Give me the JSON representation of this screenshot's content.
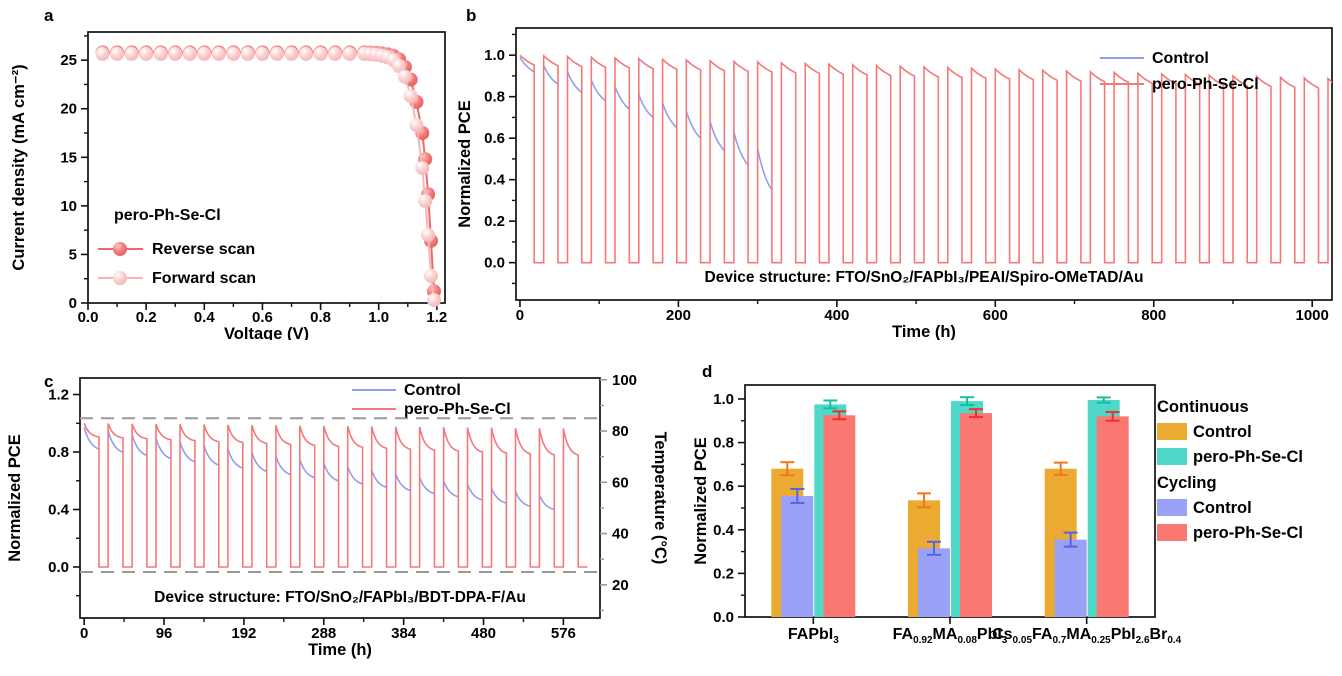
{
  "figure": {
    "panels": [
      {
        "letter": "a"
      },
      {
        "letter": "b"
      },
      {
        "letter": "c"
      },
      {
        "letter": "d"
      }
    ]
  },
  "colors": {
    "reverse_scan": "#ee6565",
    "forward_scan": "#f7b6b6",
    "control_line": "#8fa0ea",
    "pero_line": "#f57878",
    "continuous_control_bar": "#ebab33",
    "continuous_pero_bar": "#4fd8c8",
    "cycling_control_bar": "#99a2f6",
    "cycling_pero_bar": "#fa7772",
    "temp_axis_gray": "#9a9a9a"
  },
  "chart_data": [
    {
      "panel": "a",
      "type": "line",
      "xlabel": "Voltage (V)",
      "ylabel": "Current density (mA cm⁻²)",
      "xlim": [
        0,
        1.228
      ],
      "ylim": [
        0,
        27.9
      ],
      "xticks": [
        {
          "v": 0,
          "l": "0.0"
        },
        {
          "v": 0.2,
          "l": "0.2"
        },
        {
          "v": 0.4,
          "l": "0.4"
        },
        {
          "v": 0.6,
          "l": "0.6"
        },
        {
          "v": 0.8,
          "l": "0.8"
        },
        {
          "v": 1.0,
          "l": "1.0"
        },
        {
          "v": 1.2,
          "l": "1.2"
        }
      ],
      "xminor": [
        0.1,
        0.3,
        0.5,
        0.7,
        0.9,
        1.1
      ],
      "yticks": [
        {
          "v": 0,
          "l": "0"
        },
        {
          "v": 5,
          "l": "5"
        },
        {
          "v": 10,
          "l": "10"
        },
        {
          "v": 15,
          "l": "15"
        },
        {
          "v": 20,
          "l": "20"
        },
        {
          "v": 25,
          "l": "25"
        }
      ],
      "yminor": [
        2.5,
        7.5,
        12.5,
        17.5,
        22.5,
        27.5
      ],
      "legend_title": "pero-Ph-Se-Cl",
      "series": [
        {
          "name": "Reverse scan",
          "line_color": "#f06868",
          "marker": "sphere-dark",
          "x": [
            0.05,
            0.1,
            0.15,
            0.2,
            0.25,
            0.3,
            0.35,
            0.4,
            0.45,
            0.5,
            0.55,
            0.6,
            0.65,
            0.7,
            0.75,
            0.8,
            0.85,
            0.9,
            0.95,
            0.97,
            0.99,
            1.01,
            1.03,
            1.05,
            1.07,
            1.09,
            1.11,
            1.13,
            1.15,
            1.16,
            1.17,
            1.18,
            1.19
          ],
          "y": [
            25.8,
            25.8,
            25.8,
            25.8,
            25.8,
            25.8,
            25.8,
            25.8,
            25.8,
            25.8,
            25.8,
            25.8,
            25.8,
            25.8,
            25.8,
            25.8,
            25.8,
            25.8,
            25.8,
            25.78,
            25.75,
            25.7,
            25.6,
            25.45,
            25.1,
            24.3,
            23.0,
            20.7,
            17.5,
            14.8,
            11.2,
            6.4,
            1.2
          ]
        },
        {
          "name": "Forward scan",
          "line_color": "#f7b6b6",
          "marker": "sphere-light",
          "x": [
            0.05,
            0.1,
            0.15,
            0.2,
            0.25,
            0.3,
            0.35,
            0.4,
            0.45,
            0.5,
            0.55,
            0.6,
            0.65,
            0.7,
            0.75,
            0.8,
            0.85,
            0.9,
            0.95,
            0.97,
            0.99,
            1.01,
            1.03,
            1.05,
            1.07,
            1.09,
            1.11,
            1.13,
            1.15,
            1.16,
            1.17,
            1.18,
            1.19
          ],
          "y": [
            25.65,
            25.65,
            25.65,
            25.65,
            25.65,
            25.65,
            25.65,
            25.65,
            25.65,
            25.65,
            25.65,
            25.65,
            25.65,
            25.65,
            25.65,
            25.65,
            25.65,
            25.65,
            25.65,
            25.6,
            25.55,
            25.45,
            25.3,
            25.0,
            24.4,
            23.3,
            21.3,
            18.3,
            13.9,
            10.5,
            7.0,
            2.8,
            0.3
          ]
        }
      ]
    },
    {
      "panel": "b",
      "type": "line",
      "xlabel": "Time (h)",
      "ylabel": "Normalized PCE",
      "xlim": [
        -5,
        1025
      ],
      "ylim": [
        -0.18,
        1.131
      ],
      "xticks": [
        {
          "v": 0,
          "l": "0"
        },
        {
          "v": 200,
          "l": "200"
        },
        {
          "v": 400,
          "l": "400"
        },
        {
          "v": 600,
          "l": "600"
        },
        {
          "v": 800,
          "l": "800"
        },
        {
          "v": 1000,
          "l": "1000"
        }
      ],
      "xminor": [
        100,
        300,
        500,
        700,
        900
      ],
      "yticks": [
        {
          "v": 0,
          "l": "0.0"
        },
        {
          "v": 0.2,
          "l": "0.2"
        },
        {
          "v": 0.4,
          "l": "0.4"
        },
        {
          "v": 0.6,
          "l": "0.6"
        },
        {
          "v": 0.8,
          "l": "0.8"
        },
        {
          "v": 1.0,
          "l": "1.0"
        }
      ],
      "yminor": [
        -0.1,
        0.1,
        0.3,
        0.5,
        0.7,
        0.9,
        1.1
      ],
      "annotation": "Device structure: FTO/SnO₂/FAPbI₃/PEAI/Spiro-OMeTAD/Au",
      "cycle_hours": 30,
      "light_fraction": 0.6,
      "legend": [
        {
          "label": "Control",
          "color": "#8fa0ea"
        },
        {
          "label": "pero-Ph-Se-Cl",
          "color": "#f57878"
        }
      ],
      "series": [
        {
          "name": "pero-Ph-Se-Cl",
          "color": "#f57878",
          "style": "square-wave",
          "decay_k": 0.7,
          "cycles": [
            [
              1.0,
              0.952
            ],
            [
              0.997,
              0.949
            ],
            [
              0.993,
              0.945
            ],
            [
              0.99,
              0.942
            ],
            [
              0.987,
              0.939
            ],
            [
              0.983,
              0.935
            ],
            [
              0.98,
              0.932
            ],
            [
              0.977,
              0.929
            ],
            [
              0.973,
              0.925
            ],
            [
              0.97,
              0.922
            ],
            [
              0.967,
              0.919
            ],
            [
              0.963,
              0.915
            ],
            [
              0.96,
              0.912
            ],
            [
              0.957,
              0.909
            ],
            [
              0.953,
              0.905
            ],
            [
              0.95,
              0.902
            ],
            [
              0.947,
              0.899
            ],
            [
              0.943,
              0.895
            ],
            [
              0.94,
              0.892
            ],
            [
              0.937,
              0.889
            ],
            [
              0.933,
              0.885
            ],
            [
              0.93,
              0.882
            ],
            [
              0.927,
              0.879
            ],
            [
              0.923,
              0.875
            ],
            [
              0.92,
              0.872
            ],
            [
              0.917,
              0.869
            ],
            [
              0.913,
              0.865
            ],
            [
              0.91,
              0.862
            ],
            [
              0.907,
              0.859
            ],
            [
              0.903,
              0.855
            ],
            [
              0.9,
              0.852
            ],
            [
              0.897,
              0.849
            ],
            [
              0.893,
              0.845
            ],
            [
              0.89,
              0.842
            ],
            [
              0.887,
              0.839
            ]
          ]
        },
        {
          "name": "Control",
          "color": "#8fa0ea",
          "style": "decay-only",
          "decay_k": 1.2,
          "cycles": [
            [
              0.99,
              0.92
            ],
            [
              0.95,
              0.86
            ],
            [
              0.92,
              0.82
            ],
            [
              0.88,
              0.78
            ],
            [
              0.85,
              0.74
            ],
            [
              0.81,
              0.7
            ],
            [
              0.77,
              0.65
            ],
            [
              0.73,
              0.6
            ],
            [
              0.68,
              0.54
            ],
            [
              0.63,
              0.47
            ],
            [
              0.55,
              0.35
            ]
          ]
        }
      ]
    },
    {
      "panel": "c",
      "type": "line",
      "xlabel": "Time (h)",
      "ylabel": "Normalized PCE",
      "y2label": "Temperature (°C)",
      "xlim": [
        -5,
        620
      ],
      "ylim": [
        -0.355,
        1.315
      ],
      "xticks": [
        {
          "v": 0,
          "l": "0"
        },
        {
          "v": 96,
          "l": "96"
        },
        {
          "v": 192,
          "l": "192"
        },
        {
          "v": 288,
          "l": "288"
        },
        {
          "v": 384,
          "l": "384"
        },
        {
          "v": 480,
          "l": "480"
        },
        {
          "v": 576,
          "l": "576"
        }
      ],
      "xminor": [
        48,
        144,
        240,
        336,
        432,
        528
      ],
      "yticks": [
        {
          "v": 0,
          "l": "0.0"
        },
        {
          "v": 0.4,
          "l": "0.4"
        },
        {
          "v": 0.8,
          "l": "0.8"
        },
        {
          "v": 1.2,
          "l": "1.2"
        }
      ],
      "yminor": [
        -0.2,
        0.2,
        0.6,
        1.0
      ],
      "y2ticks": [
        {
          "v": 20,
          "l": "20"
        },
        {
          "v": 40,
          "l": "40"
        },
        {
          "v": 60,
          "l": "60"
        },
        {
          "v": 80,
          "l": "80"
        },
        {
          "v": 100,
          "l": "100"
        }
      ],
      "y2minor": [
        10,
        30,
        50,
        70,
        90
      ],
      "temp_map": {
        "t_low": 25,
        "y_low": -0.035,
        "t_high": 85,
        "y_high": 1.035
      },
      "annotation": "Device structure: FTO/SnO₂/FAPbI₃/BDT-DPA-F/Au",
      "cycle_hours": 28.8,
      "light_fraction": 0.62,
      "legend": [
        {
          "label": "Control",
          "color": "#8fa0ea"
        },
        {
          "label": "pero-Ph-Se-Cl",
          "color": "#f57878"
        }
      ],
      "series": [
        {
          "name": "pero-Ph-Se-Cl",
          "color": "#f57878",
          "style": "square-wave",
          "decay_k": 2.8,
          "cycles": [
            [
              1.0,
              0.905
            ],
            [
              0.998,
              0.898
            ],
            [
              0.996,
              0.892
            ],
            [
              0.994,
              0.885
            ],
            [
              0.993,
              0.879
            ],
            [
              0.991,
              0.872
            ],
            [
              0.989,
              0.866
            ],
            [
              0.987,
              0.859
            ],
            [
              0.985,
              0.852
            ],
            [
              0.983,
              0.846
            ],
            [
              0.982,
              0.839
            ],
            [
              0.98,
              0.833
            ],
            [
              0.978,
              0.826
            ],
            [
              0.976,
              0.819
            ],
            [
              0.974,
              0.813
            ],
            [
              0.972,
              0.806
            ],
            [
              0.971,
              0.8
            ],
            [
              0.969,
              0.793
            ],
            [
              0.967,
              0.787
            ],
            [
              0.965,
              0.78
            ],
            [
              0.964,
              0.778
            ]
          ]
        },
        {
          "name": "Control",
          "color": "#8fa0ea",
          "style": "decay-only",
          "decay_k": 2.2,
          "cycles": [
            [
              0.97,
              0.82
            ],
            [
              0.945,
              0.798
            ],
            [
              0.921,
              0.776
            ],
            [
              0.896,
              0.754
            ],
            [
              0.871,
              0.732
            ],
            [
              0.846,
              0.709
            ],
            [
              0.822,
              0.687
            ],
            [
              0.797,
              0.665
            ],
            [
              0.772,
              0.643
            ],
            [
              0.747,
              0.621
            ],
            [
              0.723,
              0.599
            ],
            [
              0.698,
              0.577
            ],
            [
              0.673,
              0.554
            ],
            [
              0.648,
              0.532
            ],
            [
              0.624,
              0.51
            ],
            [
              0.599,
              0.488
            ],
            [
              0.574,
              0.466
            ],
            [
              0.549,
              0.444
            ],
            [
              0.525,
              0.422
            ],
            [
              0.5,
              0.4
            ]
          ]
        }
      ]
    },
    {
      "panel": "d",
      "type": "bar",
      "ylabel": "Normalized PCE",
      "ylim": [
        0,
        1.064
      ],
      "yticks": [
        {
          "v": 0,
          "l": "0.0"
        },
        {
          "v": 0.2,
          "l": "0.2"
        },
        {
          "v": 0.4,
          "l": "0.4"
        },
        {
          "v": 0.6,
          "l": "0.6"
        },
        {
          "v": 0.8,
          "l": "0.8"
        },
        {
          "v": 1.0,
          "l": "1.0"
        }
      ],
      "yminor": [
        0.1,
        0.3,
        0.5,
        0.7,
        0.9
      ],
      "categories": [
        [
          {
            "t": "FAPbI"
          },
          {
            "s": "3"
          }
        ],
        [
          {
            "t": "FA"
          },
          {
            "s": "0.92"
          },
          {
            "t": "MA"
          },
          {
            "s": "0.08"
          },
          {
            "t": "PbI"
          },
          {
            "s": "3"
          }
        ],
        [
          {
            "t": "Cs"
          },
          {
            "s": "0.05"
          },
          {
            "t": "FA"
          },
          {
            "s": "0.7"
          },
          {
            "t": "MA"
          },
          {
            "s": "0.25"
          },
          {
            "t": "PbI"
          },
          {
            "s": "2.6"
          },
          {
            "t": "Br"
          },
          {
            "s": "0.4"
          }
        ]
      ],
      "series": [
        {
          "name": "Continuous Control",
          "color": "#ebab33",
          "err_color": "#f07818",
          "values": [
            0.68,
            0.535,
            0.68
          ],
          "errors": [
            0.03,
            0.032,
            0.028
          ]
        },
        {
          "name": "Cycling Control",
          "color": "#99a2f6",
          "err_color": "#5565e0",
          "values": [
            0.555,
            0.315,
            0.355
          ],
          "errors": [
            0.032,
            0.03,
            0.032
          ]
        },
        {
          "name": "Continuous pero-Ph-Se-Cl",
          "color": "#4fd8c8",
          "err_color": "#10c0a0",
          "values": [
            0.975,
            0.99,
            0.995
          ],
          "errors": [
            0.018,
            0.018,
            0.012
          ]
        },
        {
          "name": "Cycling pero-Ph-Se-Cl",
          "color": "#fa7772",
          "err_color": "#f03028",
          "values": [
            0.925,
            0.935,
            0.92
          ],
          "errors": [
            0.018,
            0.018,
            0.02
          ]
        }
      ],
      "legend_groups": [
        {
          "header": "Continuous",
          "items": [
            {
              "label": "Control",
              "color": "#ebab33"
            },
            {
              "label": "pero-Ph-Se-Cl",
              "color": "#4fd8c8"
            }
          ]
        },
        {
          "header": "Cycling",
          "items": [
            {
              "label": "Control",
              "color": "#99a2f6"
            },
            {
              "label": "pero-Ph-Se-Cl",
              "color": "#fa7772"
            }
          ]
        }
      ]
    }
  ]
}
